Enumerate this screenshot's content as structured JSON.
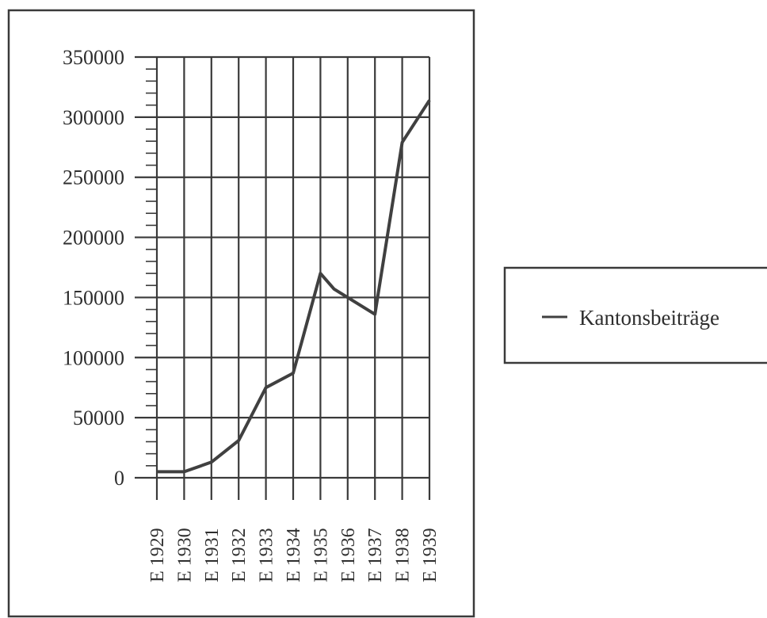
{
  "chart_data": {
    "type": "line",
    "title": "",
    "xlabel": "",
    "ylabel": "",
    "categories": [
      "E 1929",
      "E 1930",
      "E 1931",
      "E 1932",
      "E 1933",
      "E 1934",
      "E 1935",
      "E 1936",
      "E 1937",
      "E 1938",
      "E 1939"
    ],
    "y_ticks": [
      "0",
      "50000",
      "100000",
      "150000",
      "200000",
      "250000",
      "300000",
      "350000"
    ],
    "ylim": [
      0,
      350000
    ],
    "grid": true,
    "legend_position": "right",
    "series": [
      {
        "name": "Kantonsbeiträge",
        "color": "#404040",
        "points": [
          {
            "x": "E 1929",
            "y": 5000
          },
          {
            "x": "E 1930",
            "y": 5000
          },
          {
            "x": "E 1931",
            "y": 13000
          },
          {
            "x": "E 1932",
            "y": 31000
          },
          {
            "x": "E 1933",
            "y": 75000
          },
          {
            "x": "E 1934",
            "y": 87000
          },
          {
            "x": "E 1935",
            "y": 170000
          },
          {
            "x": "E 1935.5",
            "y": 157000
          },
          {
            "x": "E 1937",
            "y": 136000
          },
          {
            "x": "E 1938",
            "y": 279000
          },
          {
            "x": "E 1939",
            "y": 314000
          }
        ]
      }
    ]
  }
}
